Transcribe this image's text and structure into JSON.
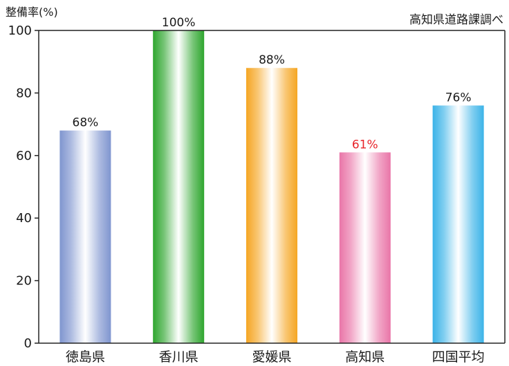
{
  "chart_data": {
    "type": "bar",
    "title": "",
    "ylabel": "整備率(%)",
    "xlabel": "",
    "source_note": "高知県道路課調べ",
    "categories": [
      "徳島県",
      "香川県",
      "愛媛県",
      "高知県",
      "四国平均"
    ],
    "values": [
      68,
      100,
      88,
      61,
      76
    ],
    "value_labels": [
      "68%",
      "100%",
      "88%",
      "61%",
      "76%"
    ],
    "ylim": [
      0,
      100
    ],
    "yticks": [
      0,
      20,
      40,
      60,
      80,
      100
    ],
    "grid": false,
    "legend": "none",
    "bar_colors": [
      "#7f95cf",
      "#2ea62e",
      "#f5a623",
      "#e975a8",
      "#3bb3e8"
    ],
    "label_colors": [
      "#1a1a1a",
      "#1a1a1a",
      "#1a1a1a",
      "#e8242a",
      "#1a1a1a"
    ]
  }
}
